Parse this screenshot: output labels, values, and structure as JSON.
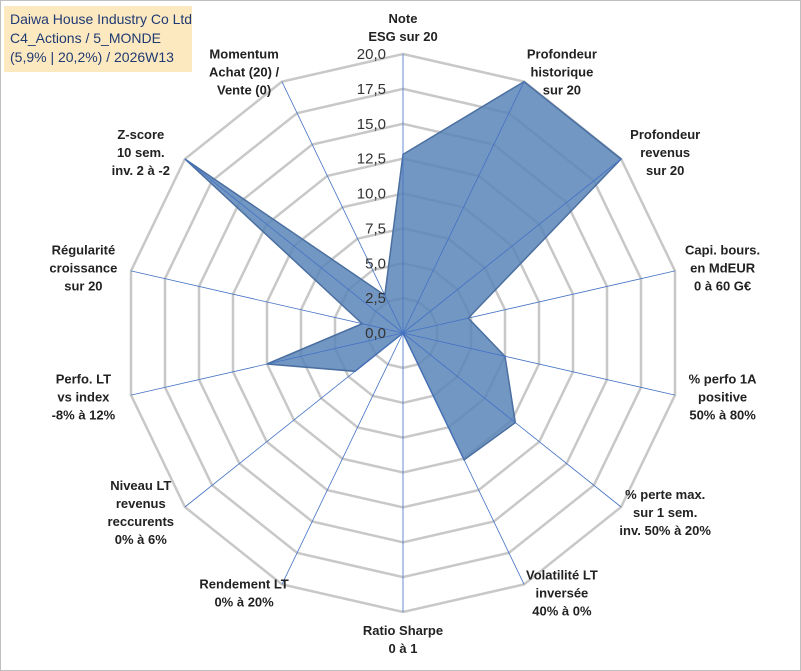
{
  "header": {
    "company": "Daiwa House Industry Co Ltd",
    "portfolio": "C4_Actions / 5_MONDE",
    "stats": "(5,9% | 20,2%) / 2026W13"
  },
  "chart_data": {
    "type": "radar",
    "rmin": 0,
    "rmax": 20,
    "step": 2.5,
    "tick_labels": [
      "0,0",
      "2,5",
      "5,0",
      "7,5",
      "10,0",
      "12,5",
      "15,0",
      "17,5",
      "20,0"
    ],
    "axes": [
      {
        "lines": [
          "Note",
          "ESG sur 20"
        ],
        "value": 12.8
      },
      {
        "lines": [
          "Profondeur",
          "historique",
          "sur 20"
        ],
        "value": 20
      },
      {
        "lines": [
          "Profondeur",
          "revenus",
          "sur 20"
        ],
        "value": 20
      },
      {
        "lines": [
          "Capi. bours.",
          "en MdEUR",
          "0 à 60 G€"
        ],
        "value": 4.8
      },
      {
        "lines": [
          "% perfo 1A",
          "positive",
          "50% à 80%"
        ],
        "value": 7.5
      },
      {
        "lines": [
          "% perte max.",
          "sur 1 sem.",
          "inv. 50% à 20%"
        ],
        "value": 10.3
      },
      {
        "lines": [
          "Volatilité LT",
          "inversée",
          "40% à 0%"
        ],
        "value": 10.1
      },
      {
        "lines": [
          "Ratio Sharpe",
          "0 à 1"
        ],
        "value": 0
      },
      {
        "lines": [
          "Rendement LT",
          "0% à 20%"
        ],
        "value": 0
      },
      {
        "lines": [
          "Niveau LT",
          "revenus",
          "reccurents",
          "0% à 6%"
        ],
        "value": 4.4
      },
      {
        "lines": [
          "Perfo. LT",
          "vs index",
          "-8% à 12%"
        ],
        "value": 10.0
      },
      {
        "lines": [
          "Régularité",
          "croissance",
          "sur 20"
        ],
        "value": 3.0
      },
      {
        "lines": [
          "Z-score",
          "10 sem.",
          "inv. 2 à -2"
        ],
        "value": 20
      },
      {
        "lines": [
          "Momentum",
          "Achat (20) /",
          "Vente (0)"
        ],
        "value": 3.0
      }
    ],
    "colors": {
      "fill": "#5b85b8",
      "stroke": "#4a6fa0",
      "grid": "#c8c8c8",
      "spoke": "#4472c4"
    }
  }
}
